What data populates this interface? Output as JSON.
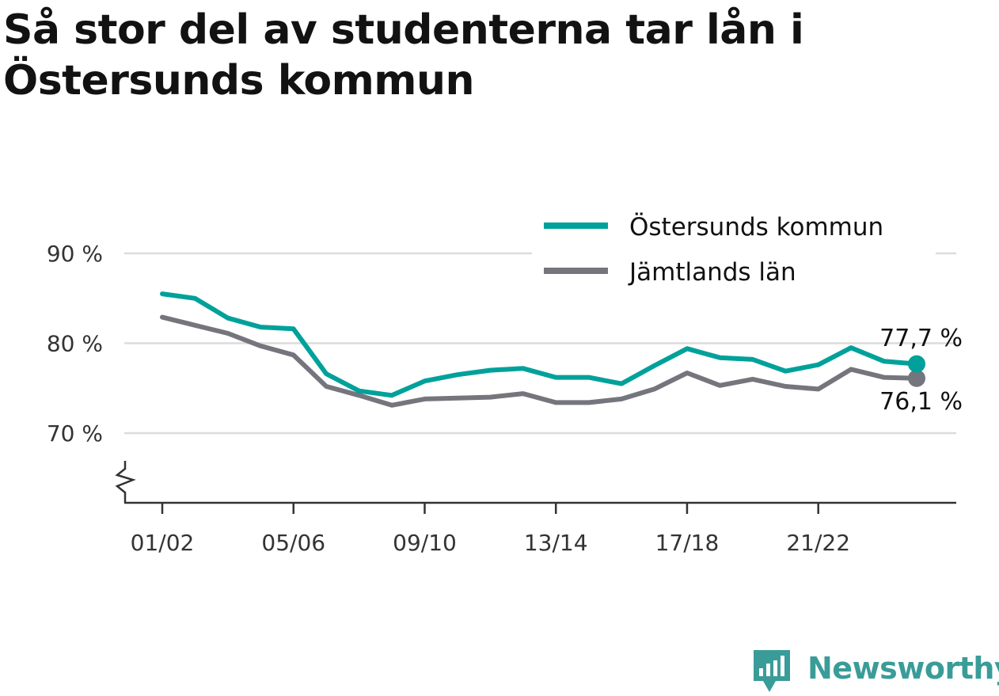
{
  "title": "Så stor del av studenterna tar lån i Östersunds kommun",
  "brand": {
    "name": "Newsworthy",
    "icon": "newsworthy-logo-icon",
    "color": "#3a9c98"
  },
  "chart_data": {
    "type": "line",
    "title": "Så stor del av studenterna tar lån i Östersunds kommun",
    "xlabel": "",
    "ylabel": "",
    "x": [
      "01/02",
      "02/03",
      "03/04",
      "04/05",
      "05/06",
      "06/07",
      "07/08",
      "08/09",
      "09/10",
      "10/11",
      "11/12",
      "12/13",
      "13/14",
      "14/15",
      "15/16",
      "16/17",
      "17/18",
      "18/19",
      "19/20",
      "20/21",
      "21/22",
      "22/23",
      "23/24",
      "24/25"
    ],
    "x_tick_labels": [
      "01/02",
      "05/06",
      "09/10",
      "13/14",
      "17/18",
      "21/22"
    ],
    "y_tick_labels": [
      "70 %",
      "80 %",
      "90 %"
    ],
    "y_ticks": [
      70,
      80,
      90
    ],
    "ylim": [
      62,
      93
    ],
    "y_axis_break": true,
    "grid": true,
    "legend_position": "top-right",
    "series": [
      {
        "name": "Östersunds kommun",
        "color": "#00a19a",
        "values": [
          85.5,
          85.0,
          82.8,
          81.8,
          81.6,
          76.6,
          74.7,
          74.2,
          75.8,
          76.5,
          77.0,
          77.2,
          76.2,
          76.2,
          75.5,
          77.5,
          79.4,
          78.4,
          78.2,
          76.9,
          77.6,
          79.5,
          78.0,
          77.7
        ],
        "end_label": "77,7 %"
      },
      {
        "name": "Jämtlands län",
        "color": "#75757d",
        "values": [
          82.9,
          82.0,
          81.1,
          79.7,
          78.7,
          75.2,
          74.2,
          73.1,
          73.8,
          73.9,
          74.0,
          74.4,
          73.4,
          73.4,
          73.8,
          74.9,
          76.7,
          75.3,
          76.0,
          75.2,
          74.9,
          77.1,
          76.2,
          76.1
        ],
        "end_label": "76,1 %"
      }
    ]
  }
}
